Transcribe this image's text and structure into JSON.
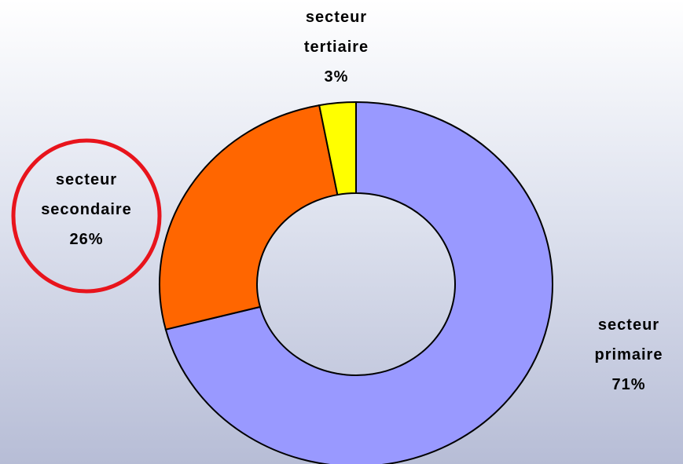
{
  "chart_data": {
    "type": "donut",
    "categories": [
      "secteur primaire",
      "secteur secondaire",
      "secteur tertiaire"
    ],
    "values": [
      71,
      26,
      3
    ],
    "value_labels": [
      "71%",
      "26%",
      "3%"
    ],
    "colors": [
      "#9999ff",
      "#ff6600",
      "#ffff00"
    ]
  }
}
